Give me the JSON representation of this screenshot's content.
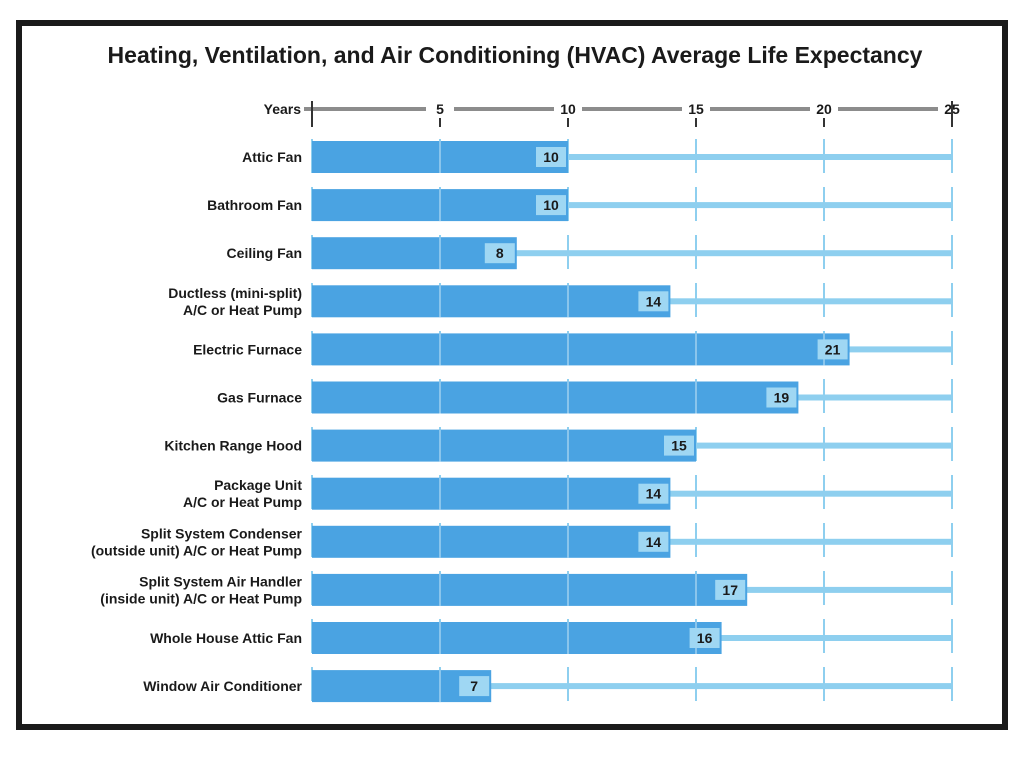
{
  "chart_data": {
    "type": "bar",
    "orientation": "horizontal",
    "title": "Heating, Ventilation, and Air Conditioning (HVAC) Average Life Expectancy",
    "axis_label": "Years",
    "xlim": [
      0,
      25
    ],
    "ticks": [
      5,
      10,
      15,
      20,
      25
    ],
    "axis_position": "top",
    "grid": true,
    "categories": [
      [
        "Attic Fan"
      ],
      [
        "Bathroom Fan"
      ],
      [
        "Ceiling Fan"
      ],
      [
        "Ductless (mini-split)",
        "A/C or Heat Pump"
      ],
      [
        "Electric Furnace"
      ],
      [
        "Gas Furnace"
      ],
      [
        "Kitchen Range Hood"
      ],
      [
        "Package Unit",
        "A/C or Heat Pump"
      ],
      [
        "Split System Condenser",
        "(outside unit) A/C or Heat Pump"
      ],
      [
        "Split System Air Handler",
        "(inside unit) A/C or Heat Pump"
      ],
      [
        "Whole House Attic Fan"
      ],
      [
        "Window Air Conditioner"
      ]
    ],
    "values": [
      10,
      10,
      8,
      14,
      21,
      19,
      15,
      14,
      14,
      17,
      16,
      7
    ],
    "colors": {
      "bar": "#4aa3e2",
      "track": "#8ecfef",
      "value_box": "#9fd7f3",
      "axis": "#8c8c8c",
      "grid_on_bar": "#9fd0f0",
      "text": "#1a1a1a"
    }
  }
}
